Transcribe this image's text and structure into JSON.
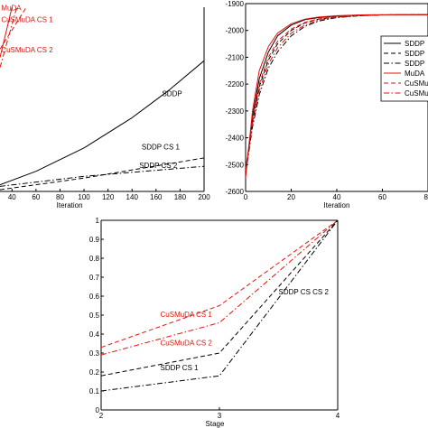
{
  "colors": {
    "sddp": "#000000",
    "cusmuda": "#e3120b",
    "axis": "#000000"
  },
  "chart_data": [
    {
      "id": "left",
      "type": "line",
      "title": "",
      "xlabel": "Iteration",
      "ylabel": "",
      "xlim": [
        30,
        200
      ],
      "x_ticks": [
        40,
        60,
        80,
        100,
        120,
        140,
        160,
        180,
        200
      ],
      "x_tick_labels": [
        "40",
        "60",
        "80",
        "100",
        "120",
        "140",
        "160",
        "180",
        "200"
      ],
      "grid": false,
      "series": [
        {
          "name": "SDDP",
          "color": "#000000",
          "dash": "solid",
          "x": [
            30,
            60,
            100,
            140,
            170,
            200
          ],
          "y": [
            0.04,
            0.12,
            0.26,
            0.44,
            0.6,
            0.78
          ]
        },
        {
          "name": "SDDP CS 1",
          "color": "#000000",
          "dash": "dashed",
          "x": [
            30,
            100,
            150,
            200
          ],
          "y": [
            0.01,
            0.08,
            0.14,
            0.2
          ]
        },
        {
          "name": "SDDP CS 2",
          "color": "#000000",
          "dash": "dashdot",
          "x": [
            30,
            100,
            150,
            200
          ],
          "y": [
            0.03,
            0.09,
            0.12,
            0.15
          ]
        },
        {
          "name": "MuDA",
          "color": "#e3120b",
          "dash": "solid",
          "x": [
            30,
            40
          ],
          "y": [
            0.8,
            1.1
          ]
        },
        {
          "name": "CuSMuDA CS 1",
          "color": "#e3120b",
          "dash": "dashed",
          "x": [
            30,
            52
          ],
          "y": [
            0.85,
            1.1
          ]
        },
        {
          "name": "CuSMuDA CS 2",
          "color": "#e3120b",
          "dash": "dashdot",
          "x": [
            30,
            44
          ],
          "y": [
            0.74,
            1.1
          ]
        }
      ],
      "annotations": [
        {
          "text": "MuDA",
          "x": 31,
          "y": 1.08,
          "color": "#e3120b"
        },
        {
          "text": "CuSMuDA CS 1",
          "x": 31,
          "y": 1.01,
          "color": "#e3120b"
        },
        {
          "text": "CuSMuDA CS 2",
          "x": 31,
          "y": 0.83,
          "color": "#e3120b"
        },
        {
          "text": "SDDP",
          "x": 165,
          "y": 0.57,
          "color": "#000000"
        },
        {
          "text": "SDDP CS 1",
          "x": 148,
          "y": 0.25,
          "color": "#000000"
        },
        {
          "text": "SDDP CS 2",
          "x": 146,
          "y": 0.14,
          "color": "#000000"
        }
      ]
    },
    {
      "id": "right",
      "type": "line",
      "title": "",
      "xlabel": "Iteration",
      "ylabel": "",
      "xlim": [
        0,
        80
      ],
      "ylim": [
        -2600,
        -1900
      ],
      "x_ticks": [
        0,
        20,
        40,
        60,
        80
      ],
      "x_tick_labels": [
        "0",
        "20",
        "40",
        "60",
        "80"
      ],
      "y_ticks": [
        -2600,
        -2500,
        -2400,
        -2300,
        -2200,
        -2100,
        -2000,
        -1900
      ],
      "y_tick_labels": [
        "-2600",
        "-2500",
        "-2400",
        "-2300",
        "-2200",
        "-2100",
        "-2000",
        "-1900"
      ],
      "grid": false,
      "legend_position": "right",
      "series": [
        {
          "name": "SDDP",
          "color": "#000000",
          "dash": "solid",
          "x": [
            0,
            3,
            6,
            10,
            14,
            20,
            26,
            32,
            40,
            50,
            60,
            80
          ],
          "y": [
            -2540,
            -2320,
            -2180,
            -2080,
            -2020,
            -1980,
            -1960,
            -1952,
            -1946,
            -1943,
            -1942,
            -1941
          ]
        },
        {
          "name": "SDDP",
          "color": "#000000",
          "dash": "dashed",
          "x": [
            0,
            3,
            6,
            10,
            14,
            20,
            26,
            32,
            40,
            50,
            60,
            80
          ],
          "y": [
            -2530,
            -2340,
            -2210,
            -2110,
            -2050,
            -2000,
            -1972,
            -1958,
            -1950,
            -1945,
            -1942,
            -1941
          ]
        },
        {
          "name": "SDDP",
          "color": "#000000",
          "dash": "dashdot",
          "x": [
            0,
            3,
            6,
            10,
            14,
            20,
            26,
            32,
            40,
            50,
            60,
            80
          ],
          "y": [
            -2535,
            -2360,
            -2240,
            -2140,
            -2080,
            -2020,
            -1985,
            -1965,
            -1952,
            -1945,
            -1942,
            -1941
          ]
        },
        {
          "name": "MuDA",
          "color": "#e3120b",
          "dash": "solid",
          "x": [
            0,
            3,
            6,
            10,
            14,
            20,
            26,
            32,
            40,
            50,
            60,
            80
          ],
          "y": [
            -2550,
            -2300,
            -2150,
            -2060,
            -2010,
            -1975,
            -1958,
            -1950,
            -1945,
            -1942,
            -1941,
            -1941
          ]
        },
        {
          "name": "CuSMu",
          "color": "#e3120b",
          "dash": "dashed",
          "x": [
            0,
            3,
            6,
            10,
            14,
            20,
            26,
            32,
            40,
            50,
            60,
            80
          ],
          "y": [
            -2520,
            -2330,
            -2200,
            -2100,
            -2040,
            -1995,
            -1970,
            -1957,
            -1948,
            -1943,
            -1942,
            -1941
          ]
        },
        {
          "name": "CuSMu",
          "color": "#e3120b",
          "dash": "dashdot",
          "x": [
            0,
            3,
            6,
            10,
            14,
            20,
            26,
            32,
            40,
            50,
            60,
            80
          ],
          "y": [
            -2525,
            -2350,
            -2225,
            -2125,
            -2065,
            -2010,
            -1980,
            -1962,
            -1950,
            -1944,
            -1942,
            -1941
          ]
        }
      ]
    },
    {
      "id": "bottom",
      "type": "line",
      "title": "",
      "xlabel": "Stage",
      "ylabel": "",
      "xlim": [
        2,
        4
      ],
      "ylim": [
        0,
        1
      ],
      "x_ticks": [
        2,
        3,
        4
      ],
      "x_tick_labels": [
        "2",
        "3",
        "4"
      ],
      "y_ticks": [
        0,
        0.1,
        0.2,
        0.3,
        0.4,
        0.5,
        0.6,
        0.7,
        0.8,
        0.9,
        1
      ],
      "y_tick_labels": [
        "0",
        "0.1",
        "0.2",
        "0.3",
        "0.4",
        "0.5",
        "0.6",
        "0.7",
        "0.8",
        "0.9",
        "1"
      ],
      "grid": false,
      "series": [
        {
          "name": "CuSMuDA CS 1",
          "color": "#e3120b",
          "dash": "dashed",
          "x": [
            2,
            3,
            4
          ],
          "y": [
            0.33,
            0.55,
            1.0
          ]
        },
        {
          "name": "CuSMuDA CS 2",
          "color": "#e3120b",
          "dash": "dashdot",
          "x": [
            2,
            3,
            4
          ],
          "y": [
            0.29,
            0.46,
            1.0
          ]
        },
        {
          "name": "SDDP CS 1",
          "color": "#000000",
          "dash": "dashed",
          "x": [
            2,
            3,
            4
          ],
          "y": [
            0.18,
            0.3,
            1.0
          ]
        },
        {
          "name": "SDDP CS CS 2",
          "color": "#000000",
          "dash": "dashdot",
          "x": [
            2,
            3,
            4
          ],
          "y": [
            0.1,
            0.18,
            1.0
          ]
        }
      ],
      "annotations": [
        {
          "text": "CuSMuDA CS 1",
          "x": 2.5,
          "y": 0.49,
          "color": "#e3120b"
        },
        {
          "text": "CuSMuDA CS 2",
          "x": 2.5,
          "y": 0.34,
          "color": "#e3120b"
        },
        {
          "text": "SDDP CS 1",
          "x": 2.5,
          "y": 0.21,
          "color": "#000000"
        },
        {
          "text": "SDDP CS CS 2",
          "x": 3.5,
          "y": 0.61,
          "color": "#000000"
        }
      ]
    }
  ]
}
